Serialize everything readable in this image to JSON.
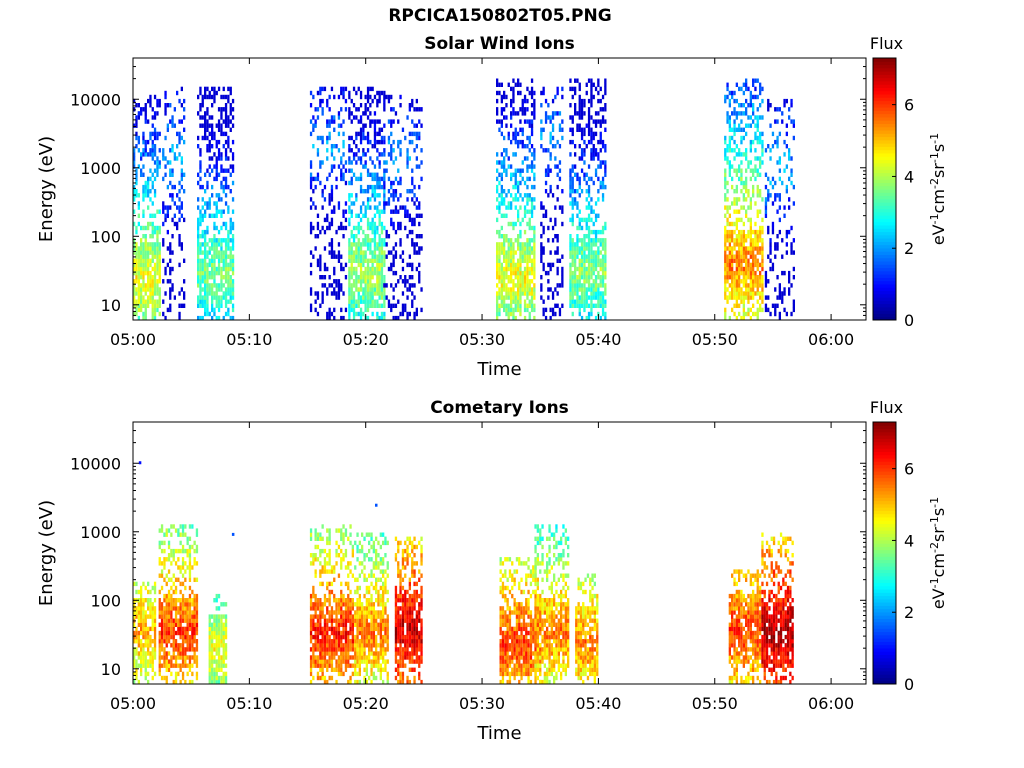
{
  "figure": {
    "title": "RPCICA150802T05.PNG"
  },
  "chart_data": [
    {
      "type": "heatmap",
      "title": "Solar Wind Ions",
      "xlabel": "Time",
      "ylabel": "Energy (eV)",
      "x_ticks": [
        "05:00",
        "05:10",
        "05:20",
        "05:30",
        "05:40",
        "05:50",
        "06:00"
      ],
      "x_tick_minutes": [
        0,
        10,
        20,
        30,
        40,
        50,
        60
      ],
      "xlim_minutes": [
        0,
        63
      ],
      "ylim": [
        6,
        40000
      ],
      "yscale": "log",
      "y_ticks": [
        10,
        100,
        1000,
        10000
      ],
      "y_tick_labels": [
        "10",
        "100",
        "1000",
        "10000"
      ],
      "colorbar": {
        "title": "Flux",
        "label": "eV-1cm-2sr-1s-1",
        "range": [
          0,
          7.3
        ],
        "ticks": [
          0,
          2,
          4,
          6
        ],
        "colormap": "jet"
      },
      "bursts": [
        {
          "start_min": 0.0,
          "end_min": 2.2,
          "max_energy": 12000,
          "peak_energy": 25,
          "peak_flux": 4.5
        },
        {
          "start_min": 2.5,
          "end_min": 4.5,
          "max_energy": 15000,
          "peak_energy": 1500,
          "peak_flux": 2.2,
          "sparse": true
        },
        {
          "start_min": 5.5,
          "end_min": 8.7,
          "max_energy": 15000,
          "peak_energy": 30,
          "peak_flux": 3.6
        },
        {
          "start_min": 15.2,
          "end_min": 18.3,
          "max_energy": 15000,
          "peak_energy": 2000,
          "peak_flux": 2.0,
          "sparse": true
        },
        {
          "start_min": 18.5,
          "end_min": 21.5,
          "max_energy": 15000,
          "peak_energy": 30,
          "peak_flux": 4.0
        },
        {
          "start_min": 21.5,
          "end_min": 24.8,
          "max_energy": 12000,
          "peak_energy": 1500,
          "peak_flux": 2.0,
          "sparse": true
        },
        {
          "start_min": 31.2,
          "end_min": 34.5,
          "max_energy": 20000,
          "peak_energy": 25,
          "peak_flux": 4.5
        },
        {
          "start_min": 35.0,
          "end_min": 37.0,
          "max_energy": 15000,
          "peak_energy": 3000,
          "peak_flux": 2.0,
          "sparse": true
        },
        {
          "start_min": 37.5,
          "end_min": 40.7,
          "max_energy": 20000,
          "peak_energy": 30,
          "peak_flux": 3.8
        },
        {
          "start_min": 50.8,
          "end_min": 54.2,
          "max_energy": 20000,
          "peak_energy": 40,
          "peak_flux": 5.5
        },
        {
          "start_min": 54.3,
          "end_min": 56.8,
          "max_energy": 10000,
          "peak_energy": 1000,
          "peak_flux": 2.2,
          "sparse": true
        }
      ]
    },
    {
      "type": "heatmap",
      "title": "Cometary Ions",
      "xlabel": "Time",
      "ylabel": "Energy (eV)",
      "x_ticks": [
        "05:00",
        "05:10",
        "05:20",
        "05:30",
        "05:40",
        "05:50",
        "06:00"
      ],
      "x_tick_minutes": [
        0,
        10,
        20,
        30,
        40,
        50,
        60
      ],
      "xlim_minutes": [
        0,
        63
      ],
      "ylim": [
        6,
        40000
      ],
      "yscale": "log",
      "y_ticks": [
        10,
        100,
        1000,
        10000
      ],
      "y_tick_labels": [
        "10",
        "100",
        "1000",
        "10000"
      ],
      "colorbar": {
        "title": "Flux",
        "label": "eV-1cm-2sr-1s-1",
        "range": [
          0,
          7.3
        ],
        "ticks": [
          0,
          2,
          4,
          6
        ],
        "colormap": "jet"
      },
      "bursts": [
        {
          "start_min": 0.0,
          "end_min": 1.8,
          "max_energy": 200,
          "peak_energy": 35,
          "peak_flux": 5.2
        },
        {
          "start_min": 2.2,
          "end_min": 5.5,
          "max_energy": 1200,
          "peak_energy": 35,
          "peak_flux": 6.0
        },
        {
          "start_min": 6.5,
          "end_min": 8.0,
          "max_energy": 120,
          "peak_energy": 20,
          "peak_flux": 4.5
        },
        {
          "start_min": 15.2,
          "end_min": 18.8,
          "max_energy": 1200,
          "peak_energy": 35,
          "peak_flux": 6.2
        },
        {
          "start_min": 19.0,
          "end_min": 21.8,
          "max_energy": 1000,
          "peak_energy": 35,
          "peak_flux": 5.5
        },
        {
          "start_min": 22.5,
          "end_min": 24.8,
          "max_energy": 900,
          "peak_energy": 38,
          "peak_flux": 6.8
        },
        {
          "start_min": 31.5,
          "end_min": 35.0,
          "max_energy": 400,
          "peak_energy": 25,
          "peak_flux": 6.0
        },
        {
          "start_min": 34.5,
          "end_min": 37.5,
          "max_energy": 1300,
          "peak_energy": 35,
          "peak_flux": 5.5
        },
        {
          "start_min": 38.0,
          "end_min": 40.0,
          "max_energy": 250,
          "peak_energy": 25,
          "peak_flux": 5.5
        },
        {
          "start_min": 51.2,
          "end_min": 54.0,
          "max_energy": 300,
          "peak_energy": 38,
          "peak_flux": 6.0
        },
        {
          "start_min": 54.0,
          "end_min": 56.8,
          "max_energy": 1000,
          "peak_energy": 35,
          "peak_flux": 7.0
        }
      ],
      "isolated_points": [
        {
          "t_min": 0.5,
          "energy": 10000,
          "flux": 1.0
        },
        {
          "t_min": 8.5,
          "energy": 900,
          "flux": 1.5
        },
        {
          "t_min": 20.8,
          "energy": 2400,
          "flux": 1.5
        }
      ]
    }
  ]
}
